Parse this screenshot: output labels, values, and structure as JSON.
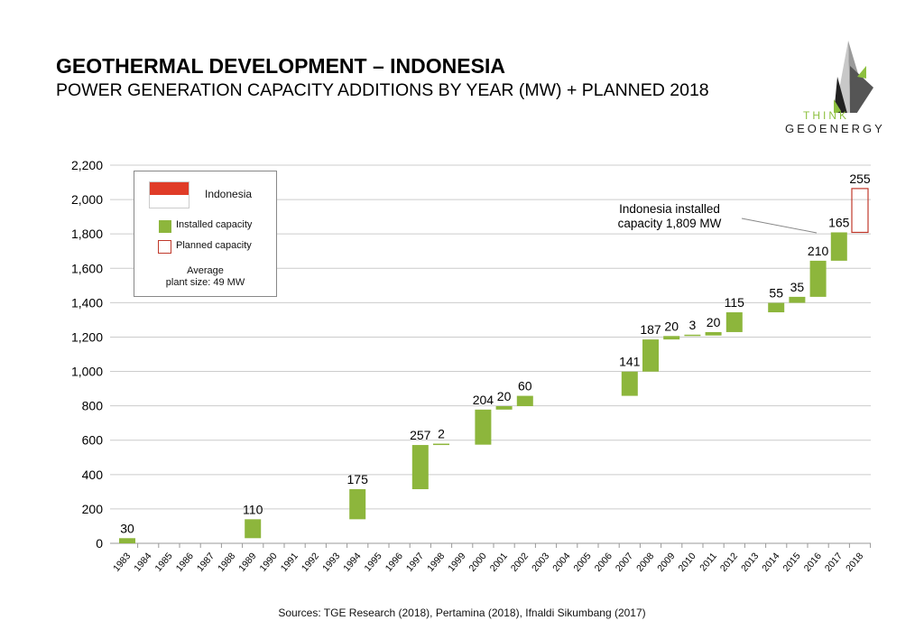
{
  "header": {
    "title": "GEOTHERMAL DEVELOPMENT – INDONESIA",
    "subtitle": "POWER GENERATION CAPACITY ADDITIONS BY YEAR (MW) + PLANNED 2018"
  },
  "logo": {
    "line1": "THINK",
    "line2": "GEOENERGY"
  },
  "legend": {
    "country": "Indonesia",
    "installed": "Installed capacity",
    "planned": "Planned capacity",
    "avg1": "Average",
    "avg2": "plant size: 49 MW"
  },
  "annotation": {
    "line1": "Indonesia installed",
    "line2": "capacity 1,809 MW"
  },
  "source": "Sources: TGE Research (2018), Pertamina (2018), Ifnaldi Sikumbang (2017)",
  "colors": {
    "installed": "#8db63c",
    "planned": "#c0392b",
    "flag_red": "#e03c28",
    "grid": "#cccccc"
  },
  "chart_data": {
    "type": "bar",
    "subtype": "waterfall",
    "categories": [
      "1983",
      "1984",
      "1985",
      "1986",
      "1987",
      "1988",
      "1989",
      "1990",
      "1991",
      "1992",
      "1993",
      "1994",
      "1995",
      "1996",
      "1997",
      "1998",
      "1999",
      "2000",
      "2001",
      "2002",
      "2003",
      "2004",
      "2005",
      "2006",
      "2007",
      "2008",
      "2009",
      "2010",
      "2011",
      "2012",
      "2013",
      "2014",
      "2015",
      "2016",
      "2017",
      "2018"
    ],
    "series": [
      {
        "name": "Installed capacity",
        "values": [
          30,
          0,
          0,
          0,
          0,
          0,
          110,
          0,
          0,
          0,
          0,
          175,
          0,
          0,
          257,
          2,
          0,
          204,
          20,
          60,
          0,
          0,
          0,
          0,
          141,
          187,
          20,
          3,
          20,
          115,
          0,
          55,
          35,
          210,
          165,
          0
        ]
      },
      {
        "name": "Planned capacity",
        "values": [
          0,
          0,
          0,
          0,
          0,
          0,
          0,
          0,
          0,
          0,
          0,
          0,
          0,
          0,
          0,
          0,
          0,
          0,
          0,
          0,
          0,
          0,
          0,
          0,
          0,
          0,
          0,
          0,
          0,
          0,
          0,
          0,
          0,
          0,
          0,
          255
        ]
      }
    ],
    "yticks": [
      "0",
      "200",
      "400",
      "600",
      "800",
      "1,000",
      "1,200",
      "1,400",
      "1,600",
      "1,800",
      "2,000",
      "2,200"
    ],
    "ylim": [
      0,
      2200
    ],
    "grid": true,
    "legend_position": "top-left"
  }
}
